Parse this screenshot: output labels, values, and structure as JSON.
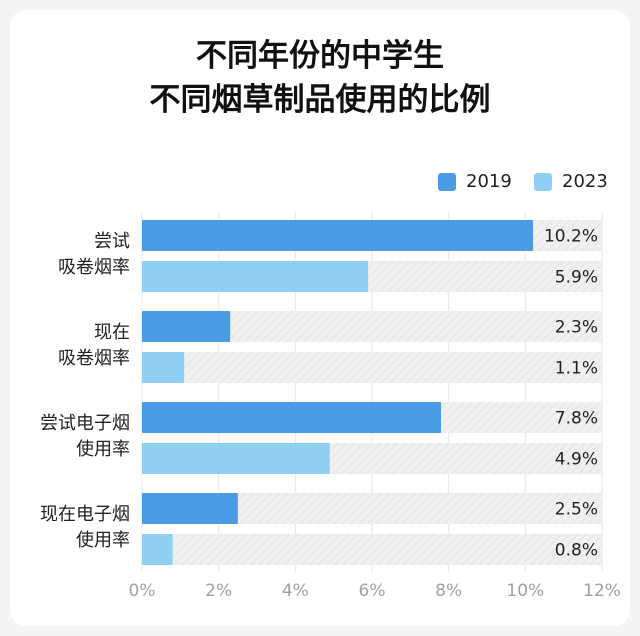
{
  "title_line1": "不同年份的中学生",
  "title_line2": "不同烟草制品使用的比例",
  "colors": {
    "s2019": "#4a9ae4",
    "s2023": "#8fd0f2",
    "track": "#efefef",
    "text": "#222222",
    "axis": "#a0a0a0"
  },
  "legend": [
    {
      "label": "2019",
      "color": "#4a9ae4"
    },
    {
      "label": "2023",
      "color": "#8fd0f2"
    }
  ],
  "chart_data": {
    "type": "bar",
    "orientation": "horizontal",
    "title": "不同年份的中学生 不同烟草制品使用的比例",
    "categories": [
      {
        "line1": "尝试",
        "line2": "吸卷烟率"
      },
      {
        "line1": "现在",
        "line2": "吸卷烟率"
      },
      {
        "line1": "尝试电子烟",
        "line2": "使用率"
      },
      {
        "line1": "现在电子烟",
        "line2": "使用率"
      }
    ],
    "series": [
      {
        "name": "2019",
        "values": [
          10.2,
          2.3,
          7.8,
          2.5
        ],
        "labels": [
          "10.2%",
          "2.3%",
          "7.8%",
          "2.5%"
        ]
      },
      {
        "name": "2023",
        "values": [
          5.9,
          1.1,
          4.9,
          0.8
        ],
        "labels": [
          "5.9%",
          "1.1%",
          "4.9%",
          "0.8%"
        ]
      }
    ],
    "xlim": [
      0,
      12
    ],
    "xticks": [
      "0%",
      "2%",
      "4%",
      "6%",
      "8%",
      "10%",
      "12%"
    ],
    "legend_position": "top-right"
  }
}
